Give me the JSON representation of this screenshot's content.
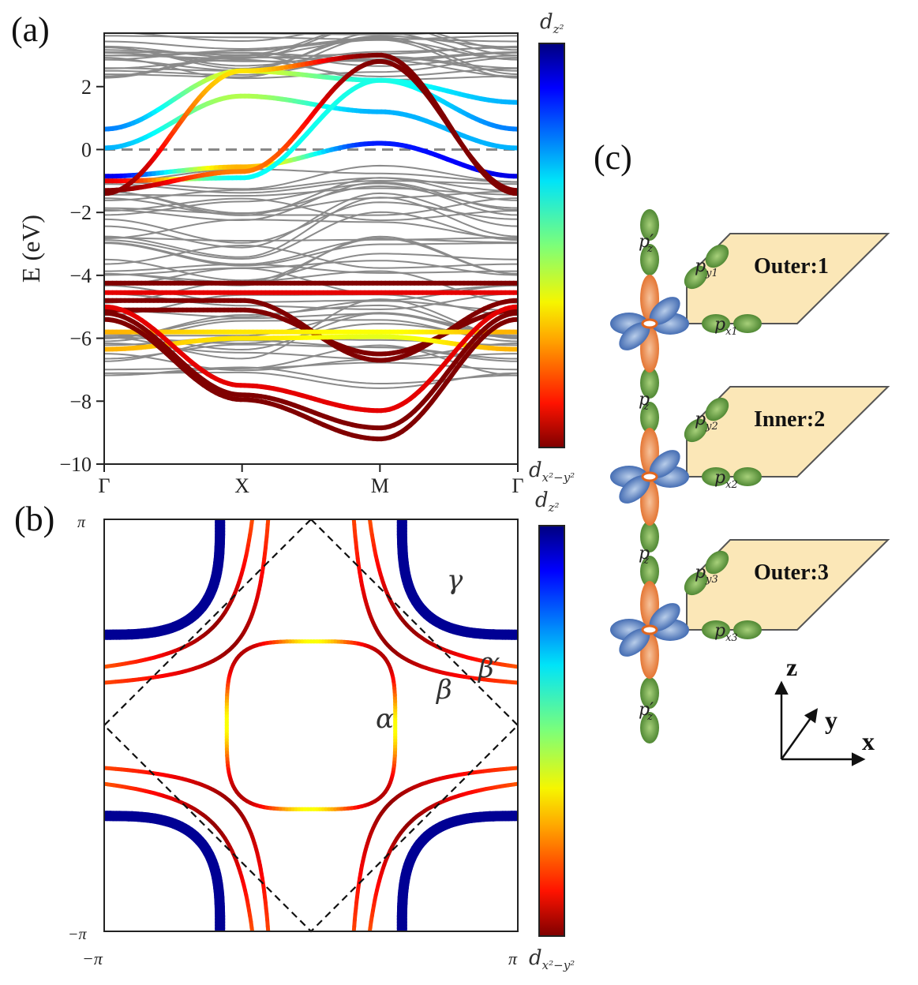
{
  "figure": {
    "panels": {
      "a": "(a)",
      "b": "(b)",
      "c": "(c)"
    }
  },
  "chart_data": [
    {
      "id": "a",
      "type": "line",
      "title": "",
      "xlabel": "",
      "ylabel": "E (eV)",
      "ylim": [
        -10,
        3.7
      ],
      "yticks": [
        2,
        0,
        -2,
        -4,
        -6,
        -8,
        -10
      ],
      "ytick_labels": [
        "2",
        "0",
        "−2",
        "−4",
        "−6",
        "−8",
        "−10"
      ],
      "x": [
        0,
        1,
        2,
        3
      ],
      "xtick_labels": [
        "Γ",
        "X",
        "M",
        "Γ"
      ],
      "fermi_level": 0,
      "colorbar": {
        "top_label": "d",
        "top_sub": "z²",
        "bottom_label": "d",
        "bottom_sub": "x²−y²",
        "colormap": "jet"
      },
      "series": [
        {
          "name": "band-1",
          "kind": "orbital",
          "E": [
            0.65,
            2.5,
            2.2,
            0.65
          ],
          "weight": [
            0.75,
            0.4,
            0.6,
            0.75
          ]
        },
        {
          "name": "band-2",
          "kind": "orbital",
          "E": [
            0.05,
            1.7,
            1.2,
            0.05
          ],
          "weight": [
            0.7,
            0.45,
            0.7,
            0.7
          ]
        },
        {
          "name": "band-3",
          "kind": "orbital",
          "E": [
            -0.85,
            -0.55,
            0.2,
            -0.85
          ],
          "weight": [
            0.9,
            0.3,
            0.85,
            0.9
          ]
        },
        {
          "name": "band-4",
          "kind": "orbital",
          "E": [
            -1.0,
            -0.9,
            2.2,
            1.5
          ],
          "weight": [
            0.1,
            0.62,
            0.6,
            0.7
          ]
        },
        {
          "name": "band-5",
          "kind": "orbital",
          "E": [
            -1.3,
            -0.7,
            2.8,
            -1.3
          ],
          "weight": [
            0.0,
            0.25,
            0.0,
            0.0
          ]
        },
        {
          "name": "band-6",
          "kind": "orbital",
          "E": [
            -1.4,
            2.5,
            3.0,
            -1.4
          ],
          "weight": [
            0.0,
            0.35,
            0.0,
            0.0
          ]
        },
        {
          "name": "band-7",
          "kind": "orbital",
          "E": [
            -4.25,
            -4.25,
            -4.25,
            -4.25
          ],
          "weight": [
            0.0,
            0.0,
            0.0,
            0.0
          ]
        },
        {
          "name": "band-8",
          "kind": "orbital",
          "E": [
            -4.55,
            -4.55,
            -4.55,
            -4.55
          ],
          "weight": [
            0.1,
            0.1,
            0.1,
            0.1
          ]
        },
        {
          "name": "band-9",
          "kind": "orbital",
          "E": [
            -4.8,
            -4.8,
            -6.7,
            -4.8
          ],
          "weight": [
            0.0,
            0.0,
            0.0,
            0.0
          ]
        },
        {
          "name": "band-10",
          "kind": "orbital",
          "E": [
            -5.1,
            -5.1,
            -6.5,
            -5.1
          ],
          "weight": [
            0.0,
            0.0,
            0.0,
            0.0
          ]
        },
        {
          "name": "band-11",
          "kind": "orbital",
          "E": [
            -5.8,
            -5.8,
            -5.8,
            -5.8
          ],
          "weight": [
            0.3,
            0.35,
            0.38,
            0.3
          ]
        },
        {
          "name": "band-12",
          "kind": "orbital",
          "E": [
            -6.35,
            -6.0,
            -5.95,
            -6.35
          ],
          "weight": [
            0.3,
            0.35,
            0.4,
            0.3
          ]
        },
        {
          "name": "band-13",
          "kind": "orbital",
          "E": [
            -5.0,
            -7.5,
            -8.3,
            -5.0
          ],
          "weight": [
            0.1,
            0.1,
            0.1,
            0.1
          ]
        },
        {
          "name": "band-14",
          "kind": "orbital",
          "E": [
            -5.2,
            -7.8,
            -8.85,
            -5.2
          ],
          "weight": [
            0.0,
            0.0,
            0.0,
            0.0
          ]
        },
        {
          "name": "band-15",
          "kind": "orbital",
          "E": [
            -5.4,
            -7.95,
            -9.2,
            -5.4
          ],
          "weight": [
            0.0,
            0.0,
            0.0,
            0.0
          ]
        }
      ]
    },
    {
      "id": "b",
      "type": "line",
      "title": "",
      "xlabel": "",
      "ylabel": "",
      "xlim": [
        "−π",
        "π"
      ],
      "ylim": [
        "−π",
        "π"
      ],
      "xtick_labels": [
        "−π",
        "π"
      ],
      "ytick_labels": [
        "π",
        "−π"
      ],
      "colorbar": {
        "top_label": "d",
        "top_sub": "z²",
        "bottom_label": "d",
        "bottom_sub": "x²−y²",
        "colormap": "jet"
      },
      "annotations": [
        "α",
        "β",
        "β′",
        "γ"
      ],
      "pockets": [
        {
          "name": "alpha",
          "label": "α",
          "center": "Γ",
          "radius_frac_pi": 0.42,
          "weight_range": [
            0.05,
            0.38
          ]
        },
        {
          "name": "beta",
          "label": "β",
          "kind": "open",
          "weight_range": [
            0.1,
            0.37
          ]
        },
        {
          "name": "beta-prime",
          "label": "β′",
          "kind": "open",
          "weight_range": [
            0.1,
            0.55
          ]
        },
        {
          "name": "gamma",
          "label": "γ",
          "center": "M",
          "weight": 0.98
        }
      ],
      "reduced_bz_dashed": true
    }
  ],
  "diagram_c": {
    "layers": [
      "Outer:1",
      "Inner:2",
      "Outer:3"
    ],
    "orbitals": {
      "pz_prime": "p′",
      "pz": "p",
      "z_sub": "z",
      "py": [
        "y1",
        "y2",
        "y3"
      ],
      "px": [
        "x1",
        "x2",
        "x3"
      ]
    },
    "axes": {
      "z": "z",
      "y": "y",
      "x": "x"
    }
  }
}
